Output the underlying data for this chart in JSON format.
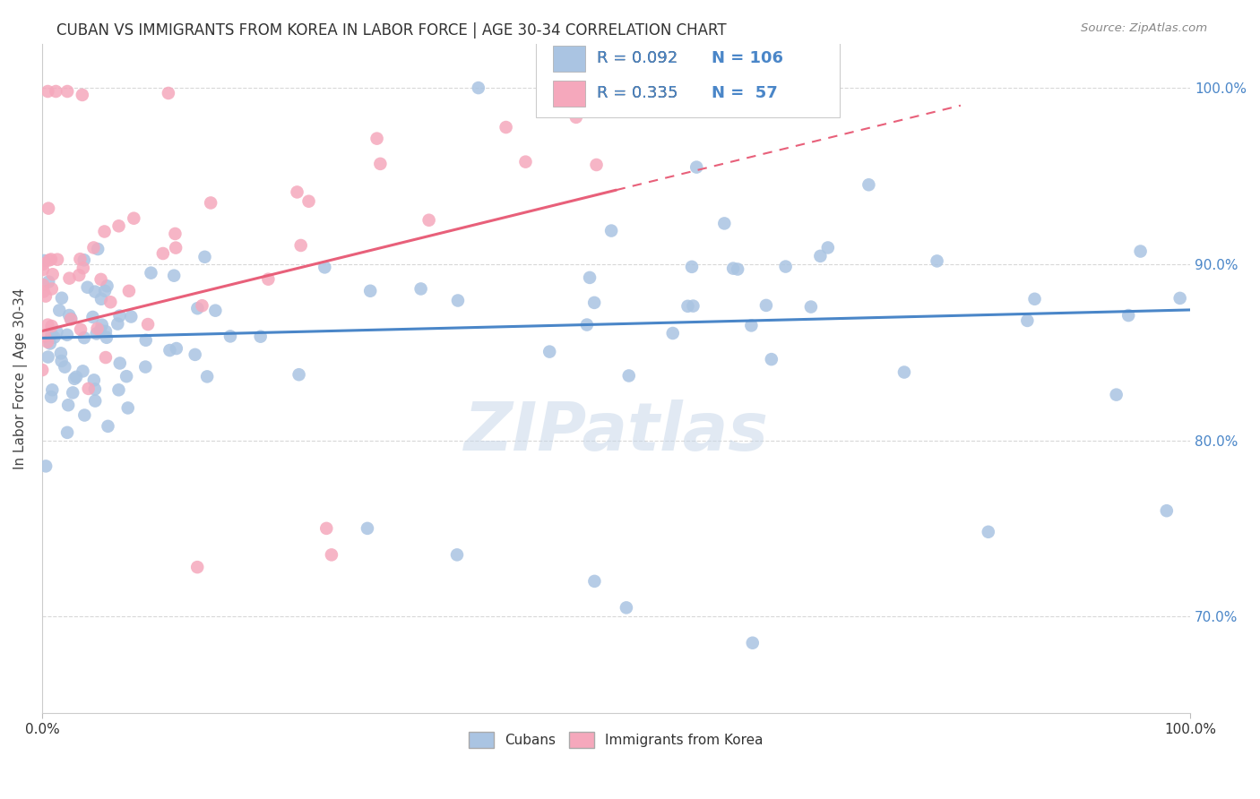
{
  "title": "CUBAN VS IMMIGRANTS FROM KOREA IN LABOR FORCE | AGE 30-34 CORRELATION CHART",
  "source_text": "Source: ZipAtlas.com",
  "ylabel": "In Labor Force | Age 30-34",
  "ytick_labels": [
    "70.0%",
    "80.0%",
    "90.0%",
    "100.0%"
  ],
  "ytick_values": [
    0.7,
    0.8,
    0.9,
    1.0
  ],
  "xlim": [
    0.0,
    1.0
  ],
  "ylim": [
    0.645,
    1.025
  ],
  "legend_label_blue": "Cubans",
  "legend_label_pink": "Immigrants from Korea",
  "blue_color": "#aac4e2",
  "pink_color": "#f5a8bc",
  "blue_line_color": "#4a86c8",
  "pink_line_color": "#e8607a",
  "watermark": "ZIPatlas",
  "background_color": "#ffffff",
  "grid_color": "#d8d8d8",
  "title_fontsize": 12,
  "axis_fontsize": 11,
  "legend_r_text": "R = 0.092   N = 106\nR = 0.335   N =  57"
}
